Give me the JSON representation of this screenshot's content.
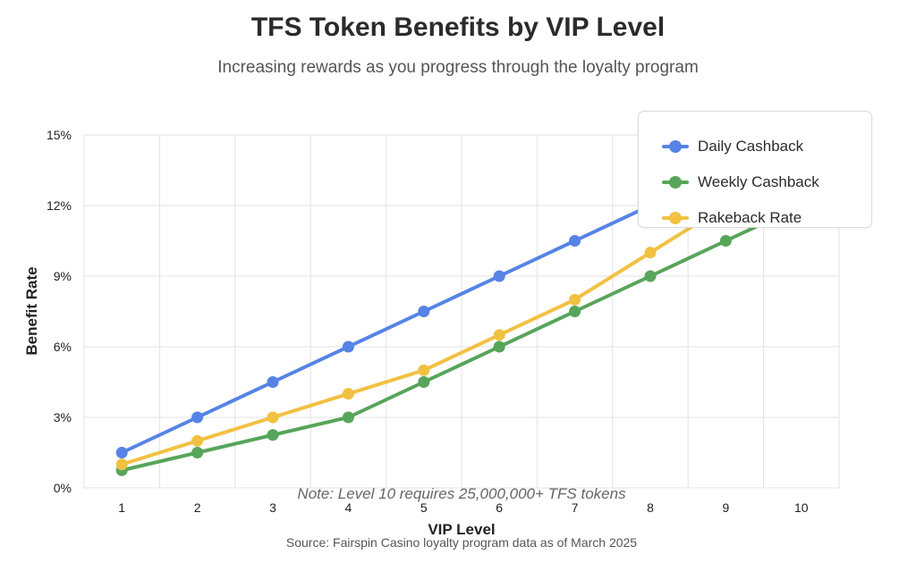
{
  "chart_data": {
    "type": "line",
    "title": "TFS Token Benefits by VIP Level",
    "subtitle": "Increasing rewards as you progress through the loyalty program",
    "xlabel": "VIP Level",
    "ylabel": "Benefit Rate",
    "categories": [
      "1",
      "2",
      "3",
      "4",
      "5",
      "6",
      "7",
      "8",
      "9",
      "10"
    ],
    "ylim": [
      0,
      15
    ],
    "yticks": [
      0,
      3,
      6,
      9,
      12,
      15
    ],
    "ytick_labels": [
      "0%",
      "3%",
      "6%",
      "9%",
      "12%",
      "15%"
    ],
    "grid": true,
    "legend_position": "top-right",
    "series": [
      {
        "name": "Daily Cashback",
        "color": "#5683e6",
        "values": [
          1.5,
          3,
          4.5,
          6,
          7.5,
          9,
          10.5,
          12,
          13.5,
          15
        ]
      },
      {
        "name": "Weekly Cashback",
        "color": "#57a55a",
        "values": [
          0.75,
          1.5,
          2.25,
          3,
          4.5,
          6,
          7.5,
          9,
          10.5,
          12
        ]
      },
      {
        "name": "Rakeback Rate",
        "color": "#f2c142",
        "values": [
          1,
          2,
          3,
          4,
          5,
          6.5,
          8,
          10,
          12,
          15
        ]
      }
    ],
    "annotation": "Note: Level 10 requires 25,000,000+ TFS tokens",
    "source": "Source: Fairspin Casino loyalty program data as of March 2025"
  }
}
